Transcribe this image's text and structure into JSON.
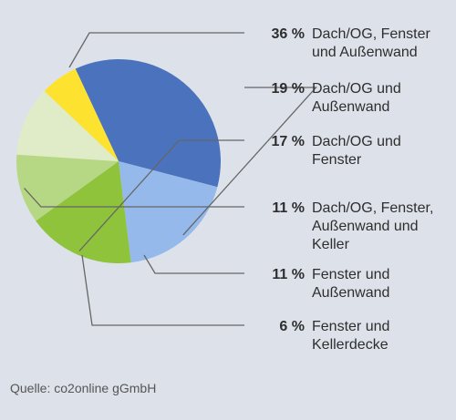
{
  "chart_data": {
    "type": "pie",
    "slices": [
      {
        "value": 36,
        "pct_label": "36 %",
        "label_lines": [
          "Dach/OG, Fenster",
          "und Außenwand"
        ],
        "color": "#4a72bd"
      },
      {
        "value": 19,
        "pct_label": "19 %",
        "label_lines": [
          "Dach/OG und",
          "Außenwand"
        ],
        "color": "#94b9ea"
      },
      {
        "value": 17,
        "pct_label": "17 %",
        "label_lines": [
          "Dach/OG und",
          "Fenster"
        ],
        "color": "#8ec33b"
      },
      {
        "value": 11,
        "pct_label": "11 %",
        "label_lines": [
          "Dach/OG, Fenster,",
          "Außenwand und",
          "Keller"
        ],
        "color": "#b6d885"
      },
      {
        "value": 11,
        "pct_label": "11 %",
        "label_lines": [
          "Fenster und",
          "Außenwand"
        ],
        "color": "#e0ecc7"
      },
      {
        "value": 6,
        "pct_label": "6 %",
        "label_lines": [
          "Fenster und",
          "Kellerdecke"
        ],
        "color": "#fde32f"
      }
    ],
    "start_angle_deg": -115,
    "direction": "clockwise",
    "leader_color": "#666666"
  },
  "source": "Quelle: co2online gGmbH"
}
